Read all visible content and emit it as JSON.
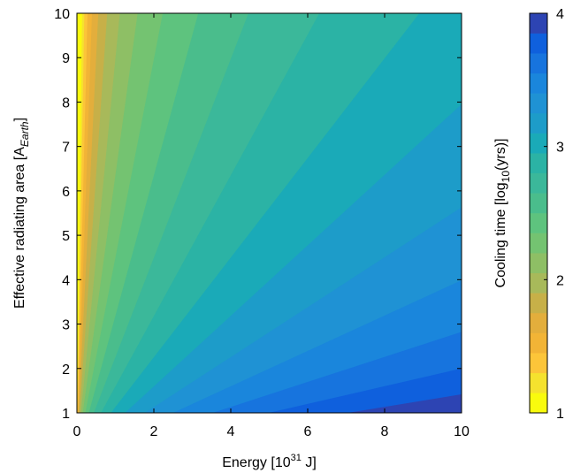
{
  "chart_data": {
    "type": "heatmap",
    "subtype": "filled-contour",
    "function": "cooling_time_log10_yrs = log10(energy / area)",
    "x": {
      "label_parts": [
        "Energy [10",
        "31",
        " J]"
      ],
      "range": [
        0,
        10
      ],
      "ticks": [
        "0",
        "2",
        "4",
        "6",
        "8",
        "10"
      ]
    },
    "y": {
      "label_parts": [
        "Effective radiating area [A",
        "Earth",
        "]"
      ],
      "range": [
        1,
        10
      ],
      "ticks": [
        "1",
        "2",
        "3",
        "4",
        "5",
        "6",
        "7",
        "8",
        "9",
        "10"
      ]
    },
    "colorbar": {
      "label_parts": [
        "Cooling time [log",
        "10",
        "(yrs)]"
      ],
      "range": [
        1,
        4
      ],
      "ticks": [
        "1",
        "2",
        "3",
        "4"
      ],
      "levels": [
        1.0,
        1.15,
        1.3,
        1.45,
        1.6,
        1.75,
        1.9,
        2.05,
        2.2,
        2.35,
        2.5,
        2.65,
        2.8,
        2.95,
        3.1,
        3.25,
        3.4,
        3.55,
        3.7,
        3.85,
        4.0
      ],
      "level_colors": [
        "#f9fb0e",
        "#f5e22e",
        "#fcc539",
        "#f2b436",
        "#e3ae3c",
        "#c7b048",
        "#a8b95a",
        "#8ebf65",
        "#74c371",
        "#5ec37e",
        "#4abd8c",
        "#3bb89a",
        "#2bb3a5",
        "#1aaab8",
        "#1d9cc9",
        "#1f92d4",
        "#1a86dc",
        "#1774de",
        "#0f60dd",
        "#2d44b3",
        "#32338c"
      ]
    },
    "grid": false,
    "legend": "none"
  }
}
